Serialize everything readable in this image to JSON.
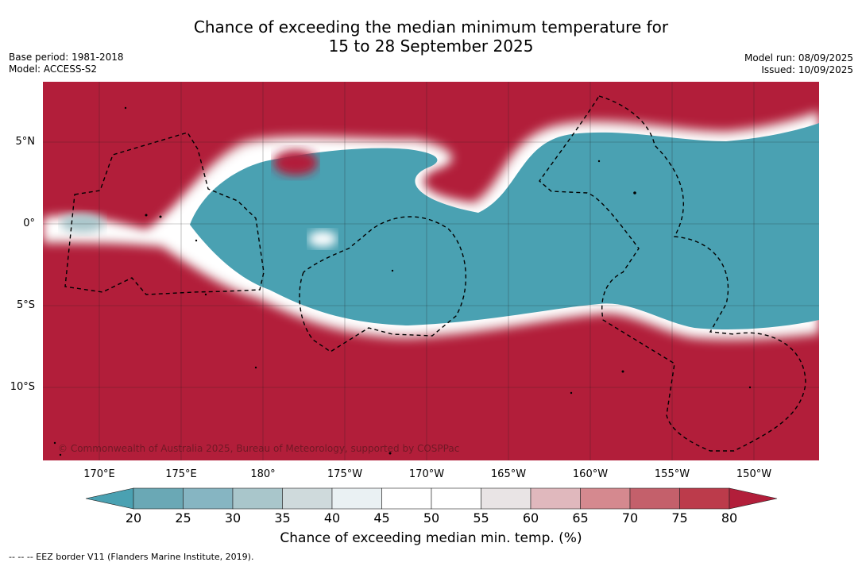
{
  "title_line1": "Chance of exceeding the median minimum temperature for",
  "title_line2": "15 to 28 September 2025",
  "meta_left": {
    "base_period": "Base period: 1981-2018",
    "model": "Model: ACCESS-S2"
  },
  "meta_right": {
    "model_run": "Model run: 08/09/2025",
    "issued": "Issued: 10/09/2025"
  },
  "copyright": "© Commonwealth of Australia 2025, Bureau of Meteorology, supported by COSPPac",
  "lat_labels": [
    "5°N",
    "0°",
    "5°S",
    "10°S"
  ],
  "lon_labels": [
    "170°E",
    "175°E",
    "180°",
    "175°W",
    "170°W",
    "165°W",
    "160°W",
    "155°W",
    "150°W"
  ],
  "colorbar": {
    "ticks": [
      "20",
      "25",
      "30",
      "35",
      "40",
      "45",
      "50",
      "55",
      "60",
      "65",
      "70",
      "75",
      "80"
    ],
    "colors": [
      "#4aa1b2",
      "#6aa8b5",
      "#86b5c2",
      "#a9c6cb",
      "#cfdadc",
      "#eaf1f3",
      "#ffffff",
      "#ffffff",
      "#e9e4e5",
      "#e0b8bd",
      "#d5898f",
      "#c4606b",
      "#bc3b4b",
      "#b21e3a"
    ],
    "title": "Chance of exceeding median min. temp. (%)"
  },
  "footnote": "--  --  -- EEZ border V11 (Flanders Marine Institute, 2019).",
  "map_colors": {
    "high": "#b21e3a",
    "low": "#4aa1b2"
  }
}
